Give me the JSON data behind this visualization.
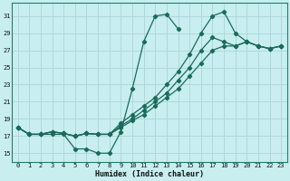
{
  "xlabel": "Humidex (Indice chaleur)",
  "bg_color": "#c8eef0",
  "grid_color": "#b0d8dc",
  "line_color": "#1a6b5a",
  "marker_color": "#1a6b5a",
  "xlim": [
    -0.5,
    23.5
  ],
  "ylim": [
    14.0,
    32.5
  ],
  "yticks": [
    15,
    17,
    19,
    21,
    23,
    25,
    27,
    29,
    31
  ],
  "xticks": [
    0,
    1,
    2,
    3,
    4,
    5,
    6,
    7,
    8,
    9,
    10,
    11,
    12,
    13,
    14,
    15,
    16,
    17,
    18,
    19,
    20,
    21,
    22,
    23
  ],
  "line1_y": [
    18.0,
    17.2,
    17.2,
    17.2,
    17.2,
    15.5,
    15.5,
    15.0,
    15.0,
    17.5,
    22.5,
    28.0,
    31.0,
    31.2,
    29.5,
    null,
    null,
    null,
    null,
    null,
    null,
    null,
    null,
    null
  ],
  "line2_y": [
    18.0,
    17.2,
    17.2,
    17.5,
    17.3,
    17.0,
    17.3,
    17.2,
    17.2,
    18.0,
    18.8,
    19.5,
    20.5,
    21.5,
    22.5,
    24.0,
    25.5,
    27.0,
    27.5,
    27.5,
    28.0,
    27.5,
    27.2,
    27.5
  ],
  "line3_y": [
    18.0,
    17.2,
    17.2,
    17.5,
    17.3,
    17.0,
    17.3,
    17.2,
    17.2,
    18.2,
    19.0,
    20.0,
    21.0,
    22.0,
    23.5,
    25.0,
    27.0,
    28.5,
    28.0,
    27.5,
    28.0,
    27.5,
    27.2,
    27.5
  ],
  "line4_y": [
    18.0,
    17.2,
    17.2,
    17.5,
    17.3,
    17.0,
    17.3,
    17.2,
    17.2,
    18.5,
    19.5,
    20.5,
    21.5,
    23.0,
    24.5,
    26.5,
    29.0,
    31.0,
    31.5,
    29.0,
    28.0,
    27.5,
    27.2,
    27.5
  ]
}
